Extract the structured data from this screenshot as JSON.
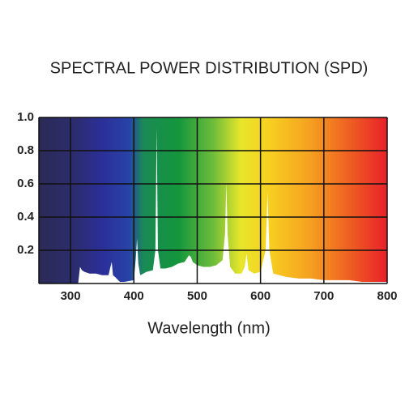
{
  "chart_data": {
    "type": "area",
    "title": "SPECTRAL POWER DISTRIBUTION (SPD)",
    "x_label": "Wavelength (nm)",
    "x": [
      312,
      315,
      318,
      322,
      330,
      340,
      350,
      360,
      363,
      365,
      367,
      370,
      378,
      385,
      400,
      403,
      405,
      407,
      410,
      420,
      430,
      434,
      436,
      438,
      442,
      450,
      460,
      470,
      480,
      487,
      490,
      493,
      500,
      510,
      520,
      530,
      540,
      544,
      546,
      548,
      552,
      560,
      570,
      575,
      578,
      581,
      590,
      600,
      608,
      611,
      614,
      620,
      640,
      660,
      680,
      700,
      720,
      740,
      760,
      780,
      800
    ],
    "values": [
      0,
      0.1,
      0.08,
      0.07,
      0.06,
      0.06,
      0.05,
      0.05,
      0.1,
      0.13,
      0.05,
      0.04,
      0.01,
      0.01,
      0.02,
      0.15,
      0.27,
      0.12,
      0.05,
      0.07,
      0.08,
      0.2,
      0.94,
      0.2,
      0.09,
      0.09,
      0.1,
      0.12,
      0.13,
      0.17,
      0.16,
      0.13,
      0.11,
      0.1,
      0.1,
      0.11,
      0.14,
      0.3,
      0.61,
      0.3,
      0.1,
      0.06,
      0.06,
      0.1,
      0.18,
      0.08,
      0.06,
      0.07,
      0.2,
      0.55,
      0.2,
      0.06,
      0.04,
      0.03,
      0.03,
      0.02,
      0.02,
      0.02,
      0.01,
      0.01,
      0.01
    ],
    "color": "#ffffff",
    "xlim": [
      250,
      800
    ],
    "xticks": [
      300,
      400,
      500,
      600,
      700,
      800
    ],
    "ylim": [
      0,
      1
    ],
    "yticks": [
      0.2,
      0.4,
      0.6,
      0.8,
      {
        "value": 1,
        "label": "1.0"
      }
    ],
    "grid": true
  }
}
